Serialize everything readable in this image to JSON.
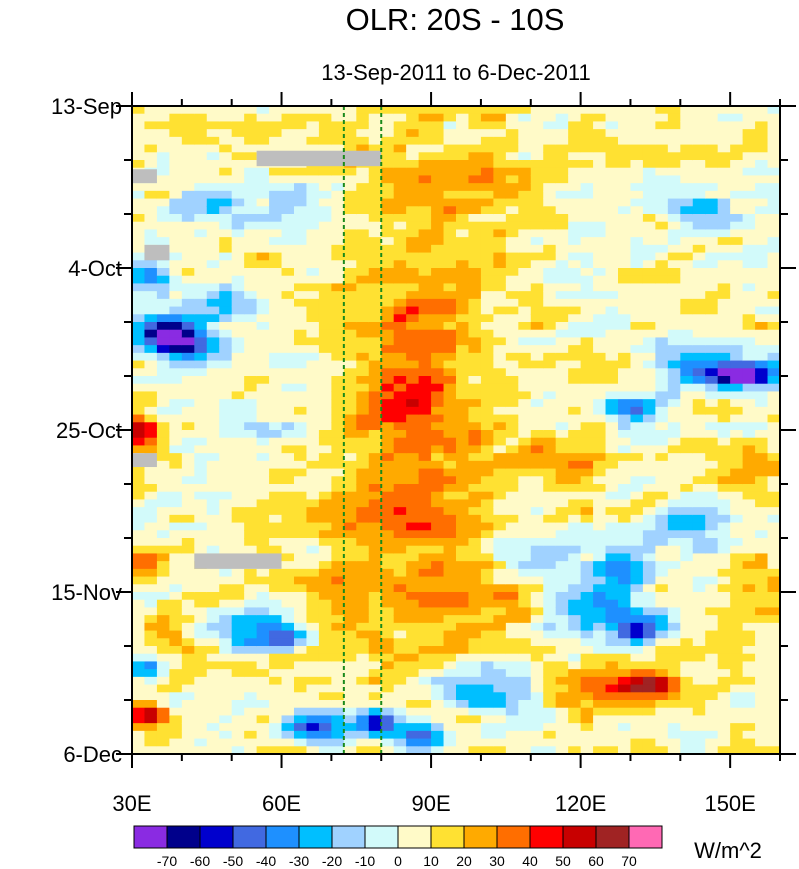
{
  "chart_data": {
    "type": "heatmap",
    "title": "OLR: 20S - 10S",
    "subtitle": "13-Sep-2011 to 6-Dec-2011",
    "units": "W/m^2",
    "x_range": [
      30,
      160
    ],
    "x_ticks": [
      {
        "value": 30,
        "label": "30E"
      },
      {
        "value": 60,
        "label": "60E"
      },
      {
        "value": 90,
        "label": "90E"
      },
      {
        "value": 120,
        "label": "120E"
      },
      {
        "value": 150,
        "label": "150E"
      }
    ],
    "y_range_days": [
      0,
      84
    ],
    "y_ticks": [
      {
        "day": 0,
        "label": "13-Sep"
      },
      {
        "day": 21,
        "label": "4-Oct"
      },
      {
        "day": 42,
        "label": "25-Oct"
      },
      {
        "day": 63,
        "label": "15-Nov"
      },
      {
        "day": 84,
        "label": "6-Dec"
      }
    ],
    "reference_lines_lon": [
      72.5,
      80
    ],
    "missing_data_color": "#bebebe",
    "colorbar": {
      "colors": [
        "#8a2be2",
        "#00008b",
        "#0000cd",
        "#4169e1",
        "#1e90ff",
        "#00bfff",
        "#a0d2ff",
        "#d2fafa",
        "#fffac8",
        "#ffe132",
        "#ffaa00",
        "#ff6e00",
        "#ff0000",
        "#c80000",
        "#a02323",
        "#ff69b4"
      ],
      "labels": [
        "-70",
        "-60",
        "-50",
        "-40",
        "-30",
        "-20",
        "-10",
        "0",
        "10",
        "20",
        "30",
        "40",
        "50",
        "60",
        "70"
      ]
    },
    "features": [
      {
        "lon": 40,
        "day": 31,
        "value": -70,
        "rlon": 7,
        "rday": 2.2
      },
      {
        "lon": 36,
        "day": 29,
        "value": -50,
        "rlon": 6,
        "rday": 1.6
      },
      {
        "lon": 34,
        "day": 22,
        "value": -45,
        "rlon": 4,
        "rday": 1.6
      },
      {
        "lon": 46,
        "day": 26,
        "value": -30,
        "rlon": 9,
        "rday": 2.5
      },
      {
        "lon": 152,
        "day": 35,
        "value": -70,
        "rlon": 7,
        "rday": 1.5
      },
      {
        "lon": 145,
        "day": 33,
        "value": -40,
        "rlon": 13,
        "rday": 2.6
      },
      {
        "lon": 130,
        "day": 39,
        "value": -45,
        "rlon": 6,
        "rday": 1.5
      },
      {
        "lon": 128,
        "day": 60,
        "value": -45,
        "rlon": 6,
        "rday": 2
      },
      {
        "lon": 132,
        "day": 68,
        "value": -50,
        "rlon": 5,
        "rday": 1.6
      },
      {
        "lon": 125,
        "day": 65,
        "value": -30,
        "rlon": 11,
        "rday": 4
      },
      {
        "lon": 140,
        "day": 55,
        "value": -30,
        "rlon": 9,
        "rday": 3
      },
      {
        "lon": 110,
        "day": 58,
        "value": -25,
        "rlon": 10,
        "rday": 3
      },
      {
        "lon": 61,
        "day": 69,
        "value": -50,
        "rlon": 5,
        "rday": 1.6
      },
      {
        "lon": 52,
        "day": 68,
        "value": -30,
        "rlon": 9,
        "rday": 3
      },
      {
        "lon": 67,
        "day": 81,
        "value": -60,
        "rlon": 6,
        "rday": 2
      },
      {
        "lon": 79,
        "day": 80,
        "value": -55,
        "rlon": 4,
        "rday": 1.6
      },
      {
        "lon": 88,
        "day": 82,
        "value": -50,
        "rlon": 5,
        "rday": 2
      },
      {
        "lon": 100,
        "day": 76,
        "value": -30,
        "rlon": 12,
        "rday": 3
      },
      {
        "lon": 33,
        "day": 73,
        "value": -40,
        "rlon": 3,
        "rday": 1.6
      },
      {
        "lon": 44,
        "day": 13,
        "value": -20,
        "rlon": 10,
        "rday": 3
      },
      {
        "lon": 63,
        "day": 13,
        "value": -20,
        "rlon": 9,
        "rday": 3
      },
      {
        "lon": 55,
        "day": 42,
        "value": -15,
        "rlon": 12,
        "rday": 3
      },
      {
        "lon": 145,
        "day": 14,
        "value": -25,
        "rlon": 8,
        "rday": 3
      },
      {
        "lon": 32,
        "day": 42,
        "value": 55,
        "rlon": 3,
        "rday": 2
      },
      {
        "lon": 33,
        "day": 79,
        "value": 55,
        "rlon": 4,
        "rday": 1.6
      },
      {
        "lon": 33,
        "day": 59,
        "value": 35,
        "rlon": 4,
        "rday": 2
      },
      {
        "lon": 134,
        "day": 75,
        "value": 45,
        "rlon": 6,
        "rday": 1.5
      },
      {
        "lon": 128,
        "day": 76,
        "value": 30,
        "rlon": 12,
        "rday": 3
      },
      {
        "lon": 85,
        "day": 39,
        "value": 25,
        "rlon": 12,
        "rday": 6
      },
      {
        "lon": 88,
        "day": 53,
        "value": 25,
        "rlon": 14,
        "rday": 6
      },
      {
        "lon": 87,
        "day": 27,
        "value": 18,
        "rlon": 10,
        "rday": 8
      },
      {
        "lon": 100,
        "day": 10,
        "value": 15,
        "rlon": 15,
        "rday": 4
      },
      {
        "lon": 38,
        "day": 68,
        "value": 25,
        "rlon": 7,
        "rday": 3
      },
      {
        "lon": 100,
        "day": 64,
        "value": 20,
        "rlon": 12,
        "rday": 4
      },
      {
        "lon": 115,
        "day": 46,
        "value": 20,
        "rlon": 10,
        "rday": 4
      },
      {
        "lon": 155,
        "day": 47,
        "value": 25,
        "rlon": 6,
        "rday": 3
      },
      {
        "lon": 74,
        "day": 63,
        "value": 25,
        "rlon": 9,
        "rday": 3
      },
      {
        "lon": 155,
        "day": 63,
        "value": 18,
        "rlon": 8,
        "rday": 4
      }
    ],
    "missing_blocks": [
      {
        "lon0": 55,
        "lon1": 80,
        "day0": 5.8,
        "day1": 7.8
      },
      {
        "lon0": 30,
        "lon1": 35,
        "day0": 8.2,
        "day1": 10
      },
      {
        "lon0": 32.5,
        "lon1": 37.5,
        "day0": 18,
        "day1": 20
      },
      {
        "lon0": 30,
        "lon1": 35,
        "day0": 45,
        "day1": 46.8
      },
      {
        "lon0": 42.5,
        "lon1": 60,
        "day0": 58,
        "day1": 60
      }
    ]
  }
}
